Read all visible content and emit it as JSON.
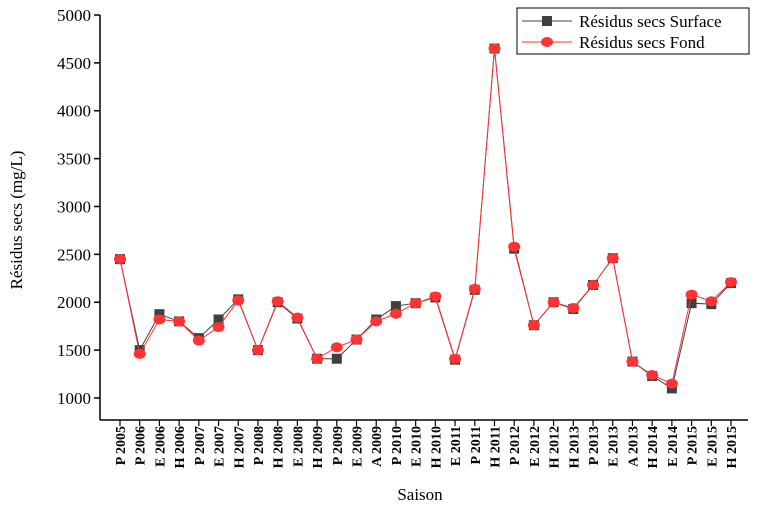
{
  "chart_data": {
    "type": "line",
    "ylabel": "Résidus secs (mg/L)",
    "xlabel": "Saison",
    "categories": [
      "P 2005",
      "P 2006",
      "E 2006",
      "H 2006",
      "P 2007",
      "E 2007",
      "H 2007",
      "P 2008",
      "H 2008",
      "E 2008",
      "H 2009",
      "P 2009",
      "E 2009",
      "A 2009",
      "P 2010",
      "E 2010",
      "H 2010",
      "E 2011",
      "P 2011",
      "H 2011",
      "P 2012",
      "E 2012",
      "H 2012",
      "H 2013",
      "P 2013",
      "E 2013",
      "A 2013",
      "H 2014",
      "E 2014",
      "P 2015",
      "E 2015",
      "H 2015"
    ],
    "series": [
      {
        "name": "Résidus secs Surface",
        "color": "#404040",
        "marker": "square",
        "values": [
          2450,
          1500,
          1875,
          1800,
          1625,
          1820,
          2030,
          1500,
          2000,
          1830,
          1410,
          1410,
          1610,
          1820,
          1960,
          1990,
          2050,
          1400,
          2130,
          4650,
          2560,
          1760,
          2000,
          1930,
          2180,
          2460,
          1380,
          1230,
          1100,
          1990,
          1980,
          2200
        ]
      },
      {
        "name": "Résidus secs Fond",
        "color": "#ff3333",
        "marker": "circle",
        "values": [
          2450,
          1460,
          1820,
          1800,
          1600,
          1740,
          2020,
          1500,
          2010,
          1840,
          1410,
          1530,
          1610,
          1800,
          1880,
          1990,
          2060,
          1410,
          2140,
          4650,
          2580,
          1760,
          2000,
          1940,
          2180,
          2460,
          1380,
          1240,
          1150,
          2080,
          2010,
          2210
        ]
      }
    ],
    "ylim": [
      770,
      5000
    ],
    "yticks": [
      1000,
      1500,
      2000,
      2500,
      3000,
      3500,
      4000,
      4500,
      5000
    ],
    "legend": "upper right"
  }
}
